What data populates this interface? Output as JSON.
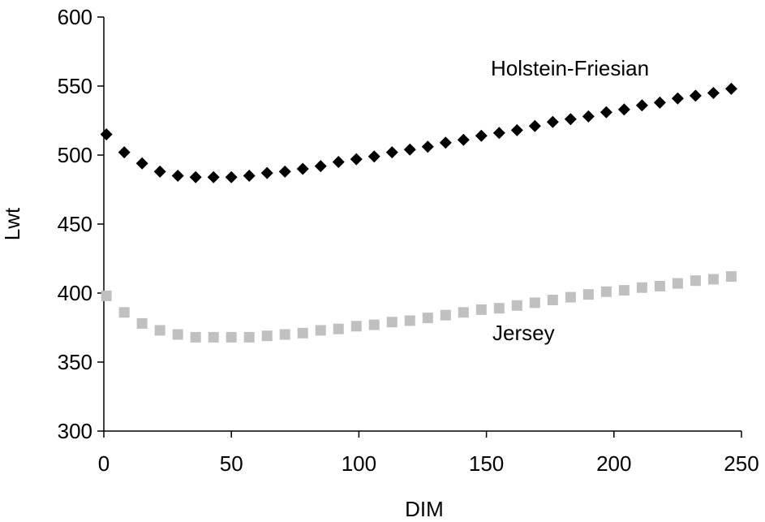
{
  "chart_data": {
    "type": "scatter",
    "title": "",
    "xlabel": "DIM",
    "ylabel": "Lwt",
    "xlim": [
      0,
      250
    ],
    "ylim": [
      300,
      600
    ],
    "xticks": [
      0,
      50,
      100,
      150,
      200,
      250
    ],
    "yticks": [
      300,
      350,
      400,
      450,
      500,
      550,
      600
    ],
    "grid": false,
    "legend": "none",
    "series": [
      {
        "name": "Holstein-Friesian",
        "marker": "diamond",
        "color": "#000000",
        "x": [
          1,
          8,
          15,
          22,
          29,
          36,
          43,
          50,
          57,
          64,
          71,
          78,
          85,
          92,
          99,
          106,
          113,
          120,
          127,
          134,
          141,
          148,
          155,
          162,
          169,
          176,
          183,
          190,
          197,
          204,
          211,
          218,
          225,
          232,
          239,
          246
        ],
        "y": [
          515,
          502,
          494,
          488,
          485,
          484,
          484,
          484,
          485,
          487,
          488,
          490,
          492,
          495,
          497,
          499,
          502,
          504,
          506,
          509,
          511,
          514,
          516,
          518,
          521,
          524,
          526,
          528,
          531,
          533,
          536,
          538,
          541,
          543,
          545,
          548
        ]
      },
      {
        "name": "Jersey",
        "marker": "square",
        "color": "#c0c0c0",
        "x": [
          1,
          8,
          15,
          22,
          29,
          36,
          43,
          50,
          57,
          64,
          71,
          78,
          85,
          92,
          99,
          106,
          113,
          120,
          127,
          134,
          141,
          148,
          155,
          162,
          169,
          176,
          183,
          190,
          197,
          204,
          211,
          218,
          225,
          232,
          239,
          246
        ],
        "y": [
          398,
          386,
          378,
          373,
          370,
          368,
          368,
          368,
          368,
          369,
          370,
          371,
          373,
          374,
          376,
          377,
          379,
          380,
          382,
          384,
          386,
          388,
          389,
          391,
          393,
          395,
          397,
          399,
          401,
          402,
          404,
          405,
          407,
          409,
          410,
          412
        ]
      }
    ]
  }
}
